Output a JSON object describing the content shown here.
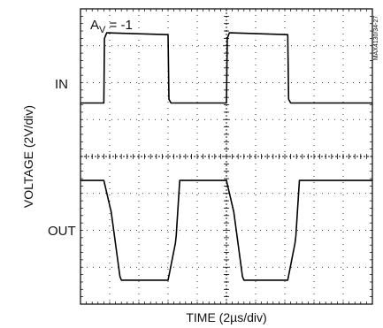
{
  "chart_data": {
    "type": "line",
    "title": "",
    "gain_label": {
      "main": "A",
      "sub": "V",
      "rest": " = -1"
    },
    "xlabel": "TIME (2µs/div)",
    "ylabel": "VOLTAGE (2V/div)",
    "part_code": "MAX4130/34-27",
    "grid": true,
    "xdiv": 10,
    "ydiv": 8,
    "xlim": [
      0,
      10
    ],
    "ylim": [
      0,
      8
    ],
    "series": [
      {
        "name": "IN",
        "x": [
          0,
          0.8,
          0.82,
          0.9,
          3.0,
          3.03,
          3.1,
          5.0,
          5.03,
          5.1,
          7.1,
          7.13,
          7.2,
          10
        ],
        "y": [
          5.45,
          5.45,
          7.2,
          7.35,
          7.3,
          5.55,
          5.45,
          5.45,
          7.2,
          7.35,
          7.3,
          5.55,
          5.45,
          5.45
        ]
      },
      {
        "name": "OUT",
        "x": [
          0,
          0.8,
          1.02,
          1.05,
          1.35,
          1.4,
          3.0,
          3.25,
          3.28,
          3.4,
          5.0,
          5.22,
          5.25,
          5.55,
          5.6,
          7.1,
          7.35,
          7.38,
          7.5,
          10
        ],
        "y": [
          3.35,
          3.35,
          2.6,
          2.5,
          0.75,
          0.65,
          0.65,
          1.65,
          1.85,
          3.35,
          3.35,
          2.6,
          2.5,
          0.75,
          0.65,
          0.65,
          1.65,
          1.85,
          3.35,
          3.35
        ]
      }
    ]
  }
}
